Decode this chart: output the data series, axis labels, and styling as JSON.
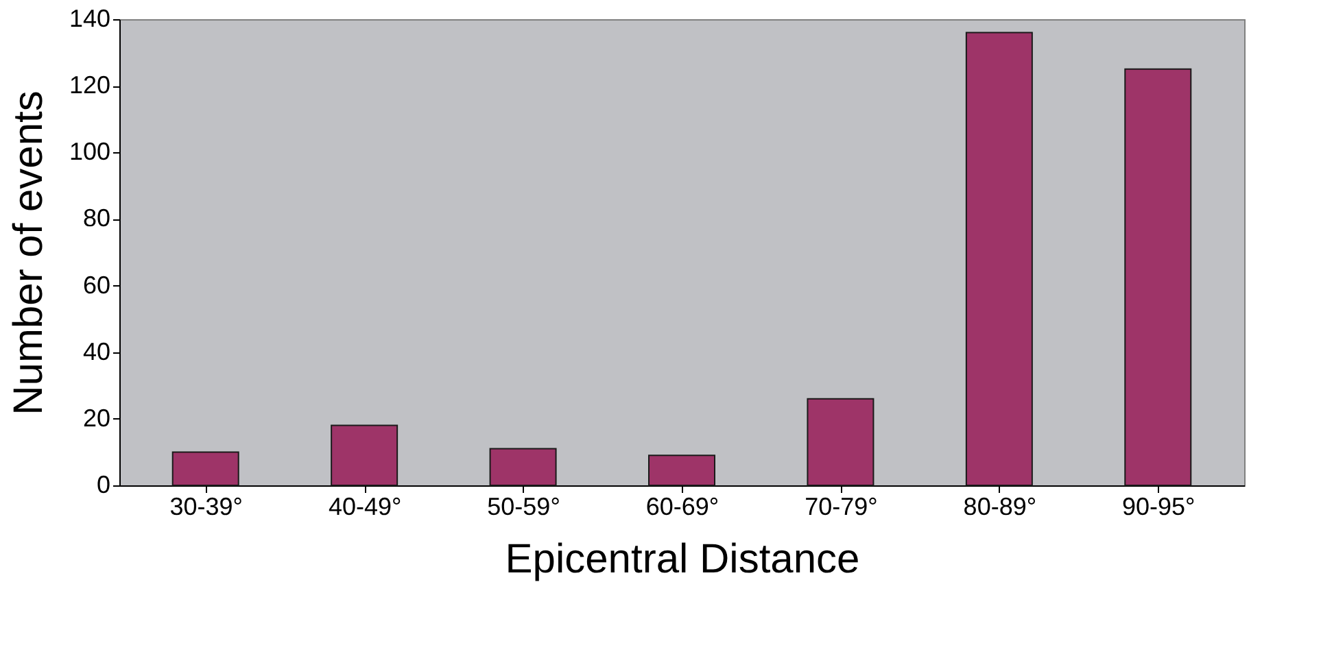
{
  "chart_data": {
    "type": "bar",
    "xlabel": "Epicentral Distance",
    "ylabel": "Number of events",
    "categories": [
      "30-39°",
      "40-49°",
      "50-59°",
      "60-69°",
      "70-79°",
      "80-89°",
      "90-95°"
    ],
    "values": [
      10,
      18,
      11,
      9,
      26,
      136,
      125
    ],
    "color": "#9e3468",
    "ylim": [
      0,
      140
    ],
    "yticks": [
      0,
      20,
      40,
      60,
      80,
      100,
      120,
      140
    ],
    "grid": false
  }
}
